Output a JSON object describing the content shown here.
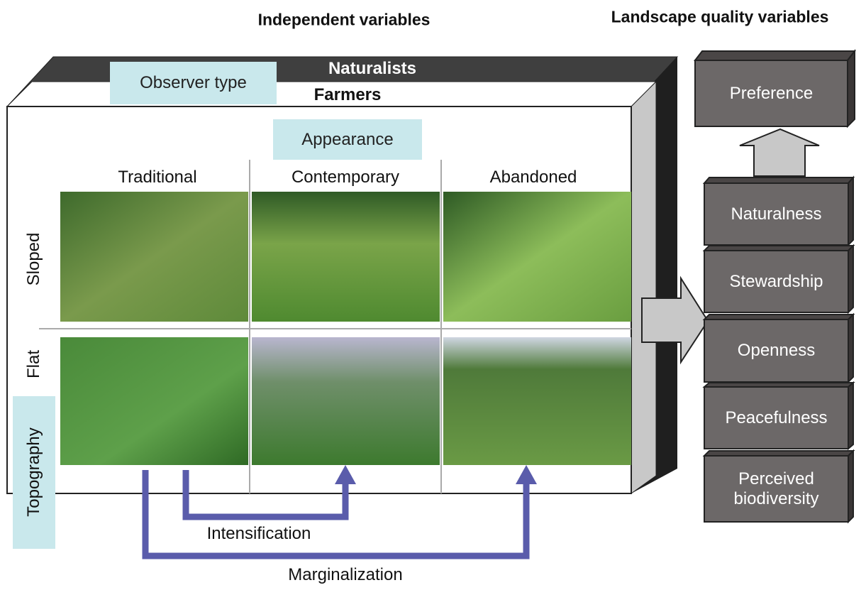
{
  "headers": {
    "independent": "Independent variables",
    "landscape_quality": "Landscape quality variables"
  },
  "observer": {
    "label": "Observer type",
    "layers": [
      "Naturalists",
      "Farmers"
    ]
  },
  "appearance": {
    "label": "Appearance",
    "columns": [
      "Traditional",
      "Contemporary",
      "Abandoned"
    ]
  },
  "topography": {
    "label": "Topography",
    "rows": [
      "Sloped",
      "Flat"
    ]
  },
  "transitions": [
    "Intensification",
    "Marginalization"
  ],
  "quality_variables": [
    "Preference",
    "Naturalness",
    "Stewardship",
    "Openness",
    "Peacefulness",
    "Perceived biodiversity"
  ]
}
